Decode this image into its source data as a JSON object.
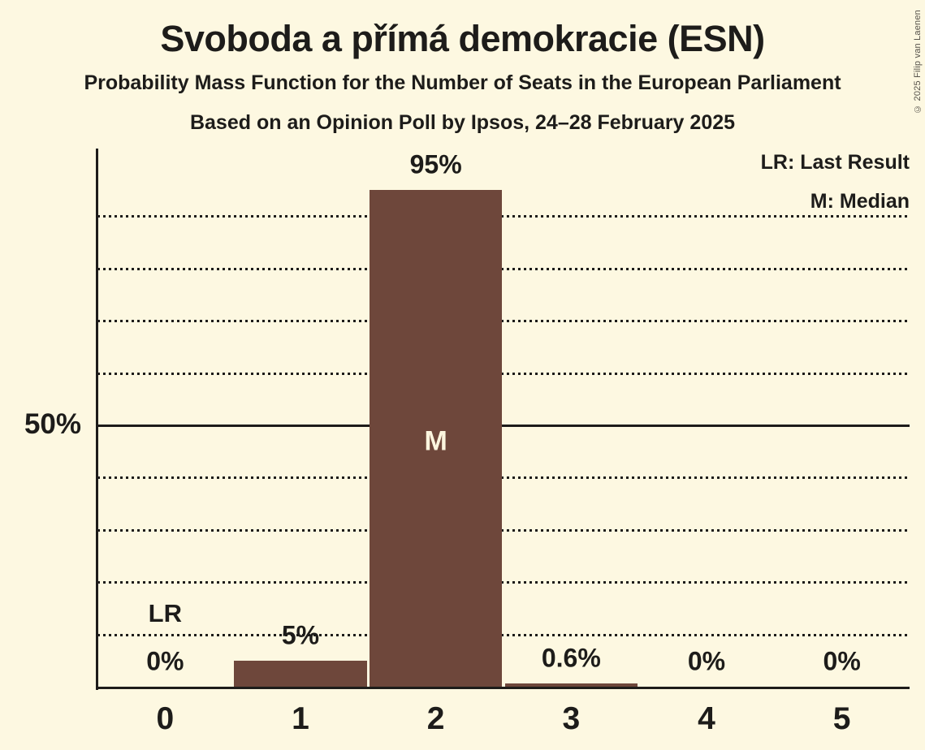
{
  "copyright": "© 2025 Filip van Laenen",
  "chart_data": {
    "type": "bar",
    "title": "Svoboda a přímá demokracie (ESN)",
    "subtitle": "Probability Mass Function for the Number of Seats in the European Parliament",
    "poll_info": "Based on an Opinion Poll by Ipsos, 24–28 February 2025",
    "legend": {
      "lr": "LR: Last Result",
      "m": "M: Median"
    },
    "legend_position": "top-right",
    "categories": [
      "0",
      "1",
      "2",
      "3",
      "4",
      "5"
    ],
    "values": [
      0,
      5,
      95,
      0.6,
      0,
      0
    ],
    "value_labels": [
      "0%",
      "5%",
      "95%",
      "0.6%",
      "0%",
      "0%"
    ],
    "y_axis_tick_label": "50%",
    "ylim": [
      0,
      100
    ],
    "gridlines_percent": [
      10,
      20,
      30,
      40,
      50,
      60,
      70,
      80,
      90
    ],
    "solid_gridline_percent": 50,
    "grid_style": "dotted horizontal",
    "annotations": [
      {
        "category_index": 0,
        "label": "LR",
        "inside_bar": false
      },
      {
        "category_index": 2,
        "label": "M",
        "inside_bar": true
      }
    ],
    "colors": {
      "background": "#fdf8e1",
      "bar": "#6e473b",
      "text": "#1d1c1a",
      "bar_label": "#fbf5de"
    }
  }
}
